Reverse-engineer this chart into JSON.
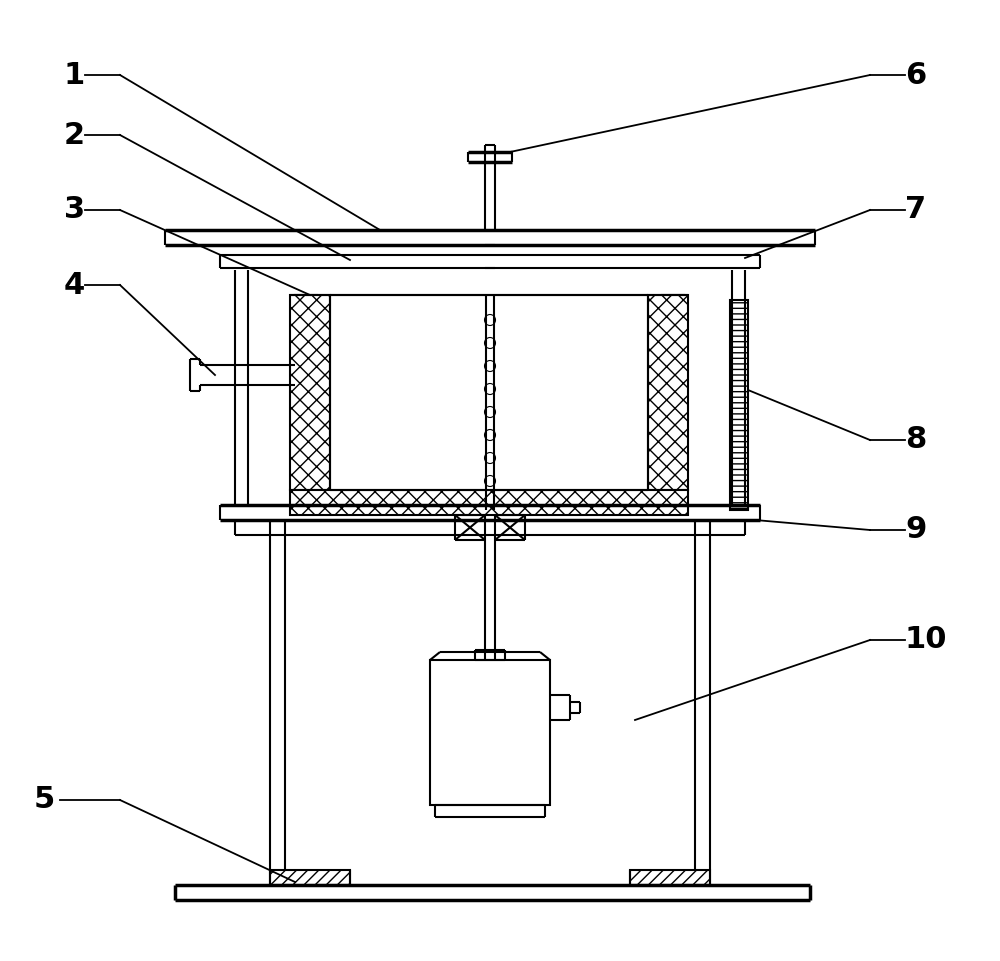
{
  "bg_color": "#ffffff",
  "line_color": "#000000",
  "label_fontsize": 22,
  "lw_main": 1.5,
  "lw_thick": 2.5
}
